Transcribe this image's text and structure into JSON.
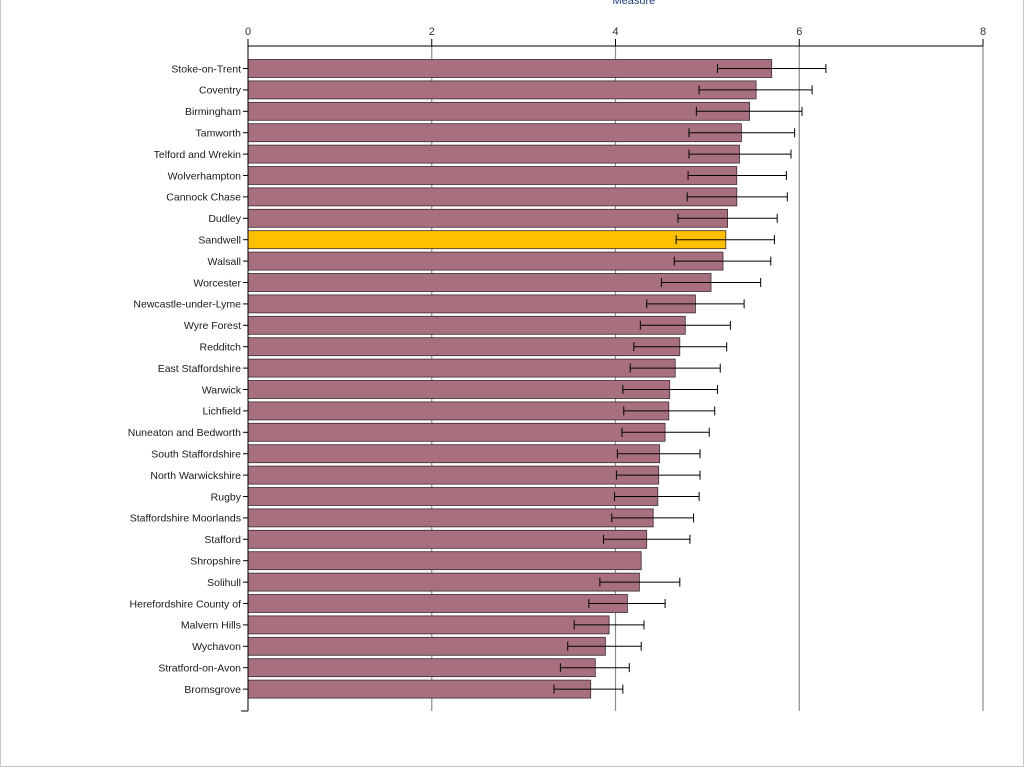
{
  "chart_data": {
    "type": "bar",
    "orientation": "horizontal",
    "title": "",
    "xlabel": "Measure",
    "ylabel": "",
    "xlim": [
      0,
      8
    ],
    "x_ticks": [
      "0",
      "2",
      "4",
      "6",
      "8"
    ],
    "grid": true,
    "bar_color": "#a8707f",
    "highlight_color": "#ffc000",
    "highlight_category": "Sandwell",
    "categories": [
      "Stoke-on-Trent",
      "Coventry",
      "Birmingham",
      "Tamworth",
      "Telford and Wrekin",
      "Wolverhampton",
      "Cannock Chase",
      "Dudley",
      "Sandwell",
      "Walsall",
      "Worcester",
      "Newcastle-under-Lyme",
      "Wyre Forest",
      "Redditch",
      "East Staffordshire",
      "Warwick",
      "Lichfield",
      "Nuneaton and Bedworth",
      "South Staffordshire",
      "North Warwickshire",
      "Rugby",
      "Staffordshire Moorlands",
      "Stafford",
      "Shropshire",
      "Solihull",
      "Herefordshire County of",
      "Malvern Hills",
      "Wychavon",
      "Stratford-on-Avon",
      "Bromsgrove"
    ],
    "values": [
      5.7,
      5.53,
      5.46,
      5.37,
      5.35,
      5.32,
      5.32,
      5.22,
      5.2,
      5.17,
      5.04,
      4.87,
      4.76,
      4.7,
      4.65,
      4.59,
      4.58,
      4.54,
      4.48,
      4.47,
      4.46,
      4.41,
      4.34,
      4.28,
      4.26,
      4.13,
      3.93,
      3.89,
      3.78,
      3.73
    ],
    "ci_lower": [
      5.11,
      4.91,
      4.88,
      4.8,
      4.8,
      4.79,
      4.78,
      4.68,
      4.66,
      4.64,
      4.5,
      4.34,
      4.27,
      4.2,
      4.16,
      4.08,
      4.09,
      4.07,
      4.02,
      4.01,
      3.99,
      3.96,
      3.87,
      null,
      3.83,
      3.71,
      3.55,
      3.48,
      3.4,
      3.33
    ],
    "ci_upper": [
      6.29,
      6.14,
      6.03,
      5.95,
      5.91,
      5.86,
      5.87,
      5.76,
      5.73,
      5.69,
      5.58,
      5.4,
      5.25,
      5.21,
      5.14,
      5.11,
      5.08,
      5.02,
      4.92,
      4.92,
      4.91,
      4.85,
      4.81,
      null,
      4.7,
      4.54,
      4.31,
      4.28,
      4.15,
      4.08
    ]
  }
}
